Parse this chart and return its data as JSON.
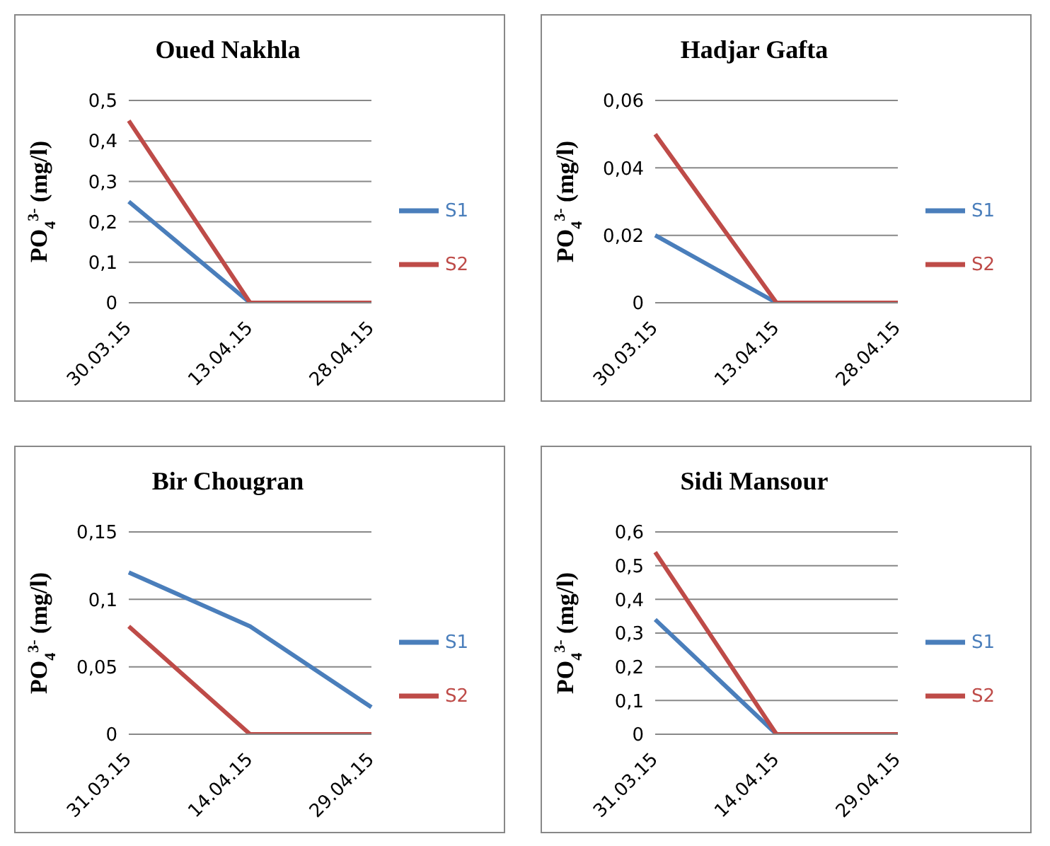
{
  "chart_data": [
    {
      "type": "line",
      "title": "Oued Nakhla",
      "ylabel": "PO$_{4}$$^{3-}$ (mg/l)",
      "categories": [
        "30.03.15",
        "13.04.15",
        "28.04.15"
      ],
      "series": [
        {
          "name": "S1",
          "color": "#4a7ebb",
          "values": [
            0.25,
            0,
            0
          ]
        },
        {
          "name": "S2",
          "color": "#be4b48",
          "values": [
            0.45,
            0,
            0
          ]
        }
      ],
      "ylim": [
        0,
        0.5
      ],
      "yticks": [
        {
          "value": 0,
          "label": "0"
        },
        {
          "value": 0.1,
          "label": "0,1"
        },
        {
          "value": 0.2,
          "label": "0,2"
        },
        {
          "value": 0.3,
          "label": "0,3"
        },
        {
          "value": 0.4,
          "label": "0,4"
        },
        {
          "value": 0.5,
          "label": "0,5"
        }
      ],
      "grid": "y",
      "legend": "right",
      "marker": "none"
    },
    {
      "type": "line",
      "title": "Hadjar Gafta",
      "ylabel": "PO$_{4}$$^{3-}$ (mg/l)",
      "categories": [
        "30.03.15",
        "13.04.15",
        "28.04.15"
      ],
      "series": [
        {
          "name": "S1",
          "color": "#4a7ebb",
          "values": [
            0.02,
            0,
            0
          ]
        },
        {
          "name": "S2",
          "color": "#be4b48",
          "values": [
            0.05,
            0,
            0
          ]
        }
      ],
      "ylim": [
        0,
        0.06
      ],
      "yticks": [
        {
          "value": 0,
          "label": "0"
        },
        {
          "value": 0.02,
          "label": "0,02"
        },
        {
          "value": 0.04,
          "label": "0,04"
        },
        {
          "value": 0.06,
          "label": "0,06"
        }
      ],
      "grid": "y",
      "legend": "right",
      "marker": "none"
    },
    {
      "type": "line",
      "title": "Bir Chougran",
      "ylabel": "PO$_{4}$$^{3-}$ (mg/l)",
      "categories": [
        "31.03.15",
        "14.04.15",
        "29.04.15"
      ],
      "series": [
        {
          "name": "S1",
          "color": "#4a7ebb",
          "values": [
            0.12,
            0.08,
            0.02
          ]
        },
        {
          "name": "S2",
          "color": "#be4b48",
          "values": [
            0.08,
            0,
            0
          ]
        }
      ],
      "ylim": [
        0,
        0.15
      ],
      "yticks": [
        {
          "value": 0,
          "label": "0"
        },
        {
          "value": 0.05,
          "label": "0,05"
        },
        {
          "value": 0.1,
          "label": "0,1"
        },
        {
          "value": 0.15,
          "label": "0,15"
        }
      ],
      "grid": "y",
      "legend": "right",
      "marker": "none"
    },
    {
      "type": "line",
      "title": "Sidi Mansour",
      "ylabel": "PO$_{4}$$^{3-}$ (mg/l)",
      "categories": [
        "31.03.15",
        "14.04.15",
        "29.04.15"
      ],
      "series": [
        {
          "name": "S1",
          "color": "#4a7ebb",
          "values": [
            0.34,
            0,
            0
          ]
        },
        {
          "name": "S2",
          "color": "#be4b48",
          "values": [
            0.54,
            0,
            0
          ]
        }
      ],
      "ylim": [
        0,
        0.6
      ],
      "yticks": [
        {
          "value": 0,
          "label": "0"
        },
        {
          "value": 0.1,
          "label": "0,1"
        },
        {
          "value": 0.2,
          "label": "0,2"
        },
        {
          "value": 0.3,
          "label": "0,3"
        },
        {
          "value": 0.4,
          "label": "0,4"
        },
        {
          "value": 0.5,
          "label": "0,5"
        },
        {
          "value": 0.6,
          "label": "0,6"
        }
      ],
      "grid": "y",
      "legend": "right",
      "marker": "none"
    }
  ]
}
